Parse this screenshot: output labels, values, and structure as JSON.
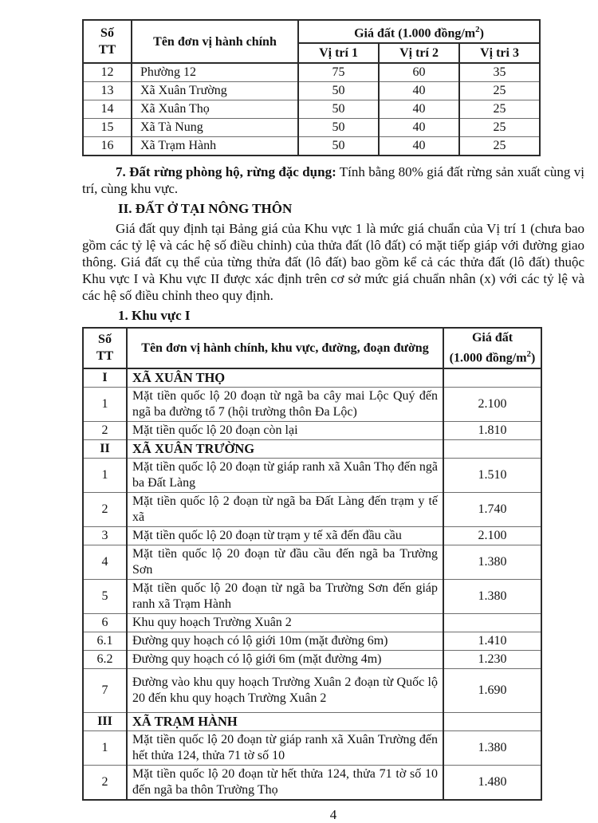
{
  "page_number": "4",
  "table1": {
    "header": {
      "stt_line1": "Số",
      "stt_line2": "TT",
      "name": "Tên đơn vị hành chính",
      "price_group_main": "Giá đất (1.000 đồng/m",
      "price_group_sup": "2",
      "price_group_close": ")",
      "pos1": "Vị trí 1",
      "pos2": "Vị trí 2",
      "pos3": "Vị tri 3"
    },
    "rows": [
      {
        "stt": "12",
        "name": "Phường 12",
        "v1": "75",
        "v2": "60",
        "v3": "35"
      },
      {
        "stt": "13",
        "name": "Xã Xuân Trường",
        "v1": "50",
        "v2": "40",
        "v3": "25"
      },
      {
        "stt": "14",
        "name": "Xã Xuân Thọ",
        "v1": "50",
        "v2": "40",
        "v3": "25"
      },
      {
        "stt": "15",
        "name": "Xã Tà Nung",
        "v1": "50",
        "v2": "40",
        "v3": "25"
      },
      {
        "stt": "16",
        "name": "Xã Trạm Hành",
        "v1": "50",
        "v2": "40",
        "v3": "25"
      }
    ]
  },
  "section7": {
    "label": "7. Đất rừng phòng hộ, rừng đặc dụng:",
    "text": " Tính bằng 80% giá đất rừng sản xuất cùng vị trí, cùng khu vực."
  },
  "heading_rural": "II. ĐẤT Ở TẠI NÔNG THÔN",
  "paragraph": "Giá đất quy định tại Bảng giá của Khu vực 1 là mức giá chuẩn của Vị trí 1 (chưa bao gồm các tỷ lệ và các hệ số điều chỉnh) của thửa đất (lô đất) có mặt tiếp giáp với đường giao thông. Giá đất cụ thể của từng thửa đất (lô đất) bao gồm kể cả các thửa đất (lô đất) thuộc Khu vực I và Khu vực II được xác định trên cơ sở mức giá chuẩn nhân (x) với các tỷ lệ và các hệ số điều chỉnh theo quy định.",
  "heading_area": "1. Khu vực I",
  "table2": {
    "header": {
      "stt_line1": "Số",
      "stt_line2": "TT",
      "name": "Tên đơn vị hành chính, khu vực, đường, đoạn đường",
      "price_line1": "Giá đất",
      "price_line2_main": "(1.000 đồng/m",
      "price_line2_sup": "2",
      "price_line2_close": ")"
    },
    "rows": [
      {
        "stt": "I",
        "name": "XÃ XUÂN THỌ",
        "price": ""
      },
      {
        "stt": "1",
        "name": "Mặt tiền quốc lộ 20 đoạn từ ngã ba cây mai Lộc Quý đến ngã ba đường tổ 7 (hội trường thôn Đa Lộc)",
        "price": "2.100"
      },
      {
        "stt": "2",
        "name": "Mặt tiền quốc lộ 20 đoạn còn lại",
        "price": "1.810"
      },
      {
        "stt": "II",
        "name": "XÃ XUÂN TRƯỜNG",
        "price": ""
      },
      {
        "stt": "1",
        "name": "Mặt tiền quốc lộ 20 đoạn từ giáp ranh xã Xuân Thọ đến ngã ba Đất Làng",
        "price": "1.510"
      },
      {
        "stt": "2",
        "name": "Mặt tiền quốc lộ 2 đoạn từ ngã ba Đất Làng đến trạm y tế xã",
        "price": "1.740"
      },
      {
        "stt": "3",
        "name": "Mặt tiền quốc lộ 20 đoạn từ trạm y tế xã đến đầu cầu",
        "price": "2.100"
      },
      {
        "stt": "4",
        "name": "Mặt tiền quốc lộ 20 đoạn từ đầu cầu đến ngã ba Trường Sơn",
        "price": "1.380"
      },
      {
        "stt": "5",
        "name": "Mặt tiền quốc lộ 20 đoạn từ ngã ba Trường Sơn đến giáp ranh xã Trạm Hành",
        "price": "1.380"
      },
      {
        "stt": "6",
        "name": "Khu quy hoạch Trường Xuân 2",
        "price": ""
      },
      {
        "stt": "6.1",
        "name": "Đường quy hoạch có lộ giới 10m (mặt đường 6m)",
        "price": "1.410"
      },
      {
        "stt": "6.2",
        "name": "Đường quy hoạch có lộ giới 6m (mặt đường 4m)",
        "price": "1.230"
      },
      {
        "stt": "7",
        "name": "Đường vào khu quy hoạch Trường Xuân 2 đoạn từ Quốc lộ 20 đến khu quy hoạch Trường Xuân 2",
        "price": "1.690"
      },
      {
        "stt": "III",
        "name": "XÃ TRẠM HÀNH",
        "price": ""
      },
      {
        "stt": "1",
        "name": "Mặt tiền quốc lộ 20 đoạn từ giáp ranh xã Xuân Trường đến hết thửa 124, thửa 71 tờ số 10",
        "price": "1.380"
      },
      {
        "stt": "2",
        "name": "Mặt tiền quốc lộ 20 đoạn từ hết thửa 124, thửa 71 tờ số 10 đến ngã ba thôn Trường Thọ",
        "price": "1.480"
      }
    ]
  }
}
